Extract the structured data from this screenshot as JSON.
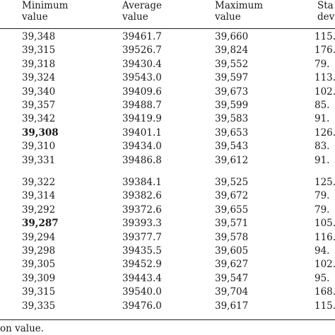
{
  "headers": [
    [
      "Minimum",
      "value"
    ],
    [
      "Average",
      "value"
    ],
    [
      "Maximum",
      "value"
    ],
    [
      "Sta",
      "devi"
    ]
  ],
  "rows_group1": [
    {
      "min": "39,348",
      "avg": "39461.7",
      "max": "39,660",
      "std": "115.",
      "bold": false
    },
    {
      "min": "39,315",
      "avg": "39526.7",
      "max": "39,824",
      "std": "176.",
      "bold": false
    },
    {
      "min": "39,318",
      "avg": "39430.4",
      "max": "39,552",
      "std": "79.",
      "bold": false
    },
    {
      "min": "39,324",
      "avg": "39543.0",
      "max": "39,597",
      "std": "113.",
      "bold": false
    },
    {
      "min": "39,340",
      "avg": "39409.6",
      "max": "39,673",
      "std": "102.",
      "bold": false
    },
    {
      "min": "39,357",
      "avg": "39488.7",
      "max": "39,599",
      "std": "85.",
      "bold": false
    },
    {
      "min": "39,342",
      "avg": "39419.9",
      "max": "39,583",
      "std": "91.",
      "bold": false
    },
    {
      "min": "39,308",
      "avg": "39401.1",
      "max": "39,653",
      "std": "126.",
      "bold": true
    },
    {
      "min": "39,310",
      "avg": "39434.0",
      "max": "39,543",
      "std": "83.",
      "bold": false
    },
    {
      "min": "39,331",
      "avg": "39486.8",
      "max": "39,612",
      "std": "91.",
      "bold": false
    }
  ],
  "rows_group2": [
    {
      "min": "39,322",
      "avg": "39384.1",
      "max": "39,525",
      "std": "125.",
      "bold": false
    },
    {
      "min": "39,314",
      "avg": "39382.6",
      "max": "39,672",
      "std": "79.",
      "bold": false
    },
    {
      "min": "39,292",
      "avg": "39372.6",
      "max": "39,655",
      "std": "79.",
      "bold": false
    },
    {
      "min": "39,287",
      "avg": "39393.3",
      "max": "39,571",
      "std": "105.",
      "bold": true
    },
    {
      "min": "39,294",
      "avg": "39377.7",
      "max": "39,578",
      "std": "116.",
      "bold": false
    },
    {
      "min": "39,298",
      "avg": "39435.5",
      "max": "39,605",
      "std": "94.",
      "bold": false
    },
    {
      "min": "39,305",
      "avg": "39452.9",
      "max": "39,627",
      "std": "102.",
      "bold": false
    },
    {
      "min": "39,309",
      "avg": "39443.4",
      "max": "39,547",
      "std": "95.",
      "bold": false
    },
    {
      "min": "39,315",
      "avg": "39540.0",
      "max": "39,704",
      "std": "168.",
      "bold": false
    },
    {
      "min": "39,335",
      "avg": "39476.0",
      "max": "39,617",
      "std": "115.",
      "bold": false
    }
  ],
  "footnote": "on value."
}
